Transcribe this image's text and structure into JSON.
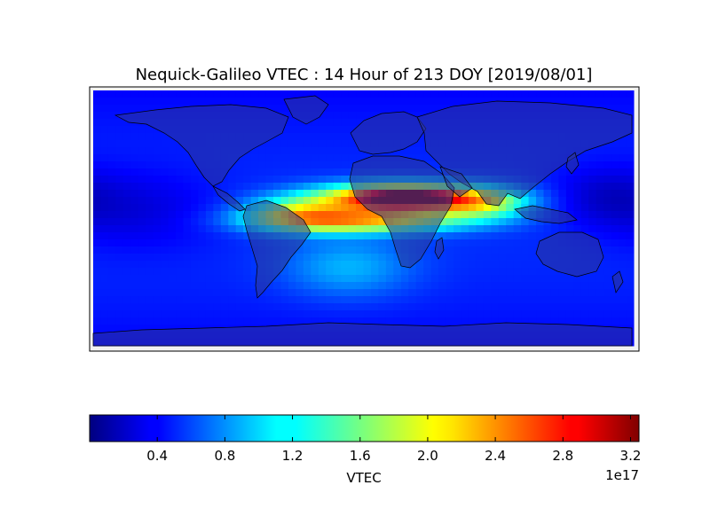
{
  "chart_data": {
    "type": "heatmap",
    "title": "Nequick-Galileo VTEC : 14 Hour of 213 DOY [2019/08/01]",
    "projection": "equirectangular",
    "lon_range": [
      -180,
      180
    ],
    "lat_range": [
      -90,
      90
    ],
    "grid": false,
    "overlay": "world coastlines and country borders",
    "colormap": "jet",
    "colorbar": {
      "placement": "bottom",
      "label": "VTEC",
      "range": [
        0.0,
        3.25
      ],
      "ticks": [
        0.4,
        0.8,
        1.2,
        1.6,
        2.0,
        2.4,
        2.8,
        3.2
      ],
      "tick_labels": [
        "0.4",
        "0.8",
        "1.2",
        "1.6",
        "2.0",
        "2.4",
        "2.8",
        "3.2"
      ],
      "offset_label": "1e17"
    },
    "field_description_units": "VTEC in 1e17",
    "features": [
      {
        "kind": "background",
        "value": 0.55
      },
      {
        "kind": "equatorial_anomaly_north",
        "lon": 25,
        "lat": 14,
        "sigma_lon": 38,
        "sigma_lat": 7,
        "peak": 2.6
      },
      {
        "kind": "equatorial_anomaly_north_core",
        "lon": 30,
        "lat": 15,
        "sigma_lon": 18,
        "sigma_lat": 3,
        "peak": 0.7
      },
      {
        "kind": "equatorial_anomaly_south",
        "lon": 0,
        "lat": -2,
        "sigma_lon": 45,
        "sigma_lat": 6,
        "peak": 1.5
      },
      {
        "kind": "western_branch",
        "lon": -45,
        "lat": 3,
        "sigma_lon": 25,
        "sigma_lat": 8,
        "peak": 1.0
      },
      {
        "kind": "eastern_branch",
        "lon": 80,
        "lat": 10,
        "sigma_lon": 22,
        "sigma_lat": 8,
        "peak": 0.9
      },
      {
        "kind": "south_atlantic_lobe",
        "lon": -10,
        "lat": -35,
        "sigma_lon": 30,
        "sigma_lat": 15,
        "peak": 0.45
      },
      {
        "kind": "pacific_low",
        "lon": -150,
        "lat": 5,
        "sigma_lon": 40,
        "sigma_lat": 20,
        "peak": -0.25
      },
      {
        "kind": "west_pacific_low",
        "lon": 160,
        "lat": 15,
        "sigma_lon": 25,
        "sigma_lat": 15,
        "peak": -0.25
      }
    ]
  }
}
